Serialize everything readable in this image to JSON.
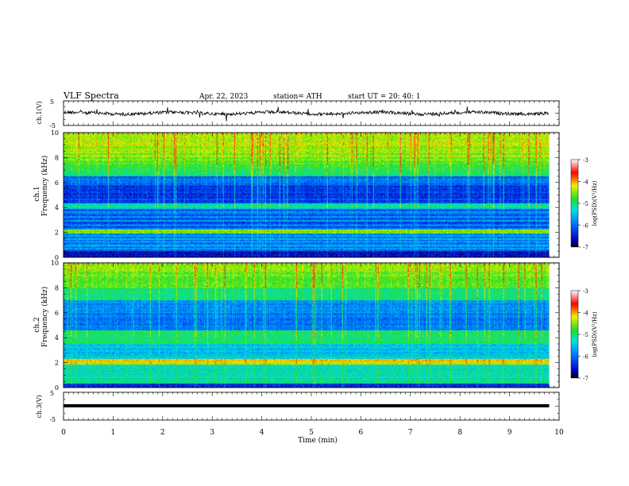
{
  "header": {
    "title": "VLF  Spectra",
    "date": "Apr. 22, 2023",
    "station": "station= ATH",
    "start": "start  UT  =    20: 40: 1"
  },
  "chart_data": [
    {
      "type": "line",
      "panel": "ch1-waveform",
      "ylabel": "ch.1(V)",
      "ylim": [
        -5,
        5
      ],
      "yticks": [
        "5",
        "-5"
      ],
      "xlim": [
        0,
        10
      ],
      "series_color": "#000000"
    },
    {
      "type": "heatmap",
      "panel": "ch1-spectrogram",
      "ylabel_channel": "ch.1",
      "ylabel": "Frequency  (kHz)",
      "ylim": [
        0,
        10
      ],
      "yticks": [
        "0",
        "2",
        "4",
        "6",
        "8",
        "10"
      ],
      "xlim": [
        0,
        10
      ],
      "data_end_min": 9.8,
      "colorbar": {
        "label": "log(PSD)(V²/Hz)",
        "range": [
          -7,
          -3
        ],
        "ticks": [
          "-3",
          "-4",
          "-5",
          "-6",
          "-7"
        ]
      }
    },
    {
      "type": "heatmap",
      "panel": "ch2-spectrogram",
      "ylabel_channel": "ch.2",
      "ylabel": "Frequency  (kHz)",
      "ylim": [
        0,
        10
      ],
      "yticks": [
        "0",
        "2",
        "4",
        "6",
        "8",
        "10"
      ],
      "xlim": [
        0,
        10
      ],
      "data_end_min": 9.8,
      "colorbar": {
        "label": "log(PSD)(V²/Hz)",
        "range": [
          -7,
          -3
        ],
        "ticks": [
          "-3",
          "-4",
          "-5",
          "-6",
          "-7"
        ]
      }
    },
    {
      "type": "line",
      "panel": "ch3-waveform",
      "ylabel": "ch.3(V)",
      "ylim": [
        -5,
        5
      ],
      "yticks": [
        "5",
        "-5"
      ],
      "xlim": [
        0,
        10
      ],
      "xlabel": "Time  (min)",
      "xticks": [
        "0",
        "1",
        "2",
        "3",
        "4",
        "5",
        "6",
        "7",
        "8",
        "9",
        "10"
      ],
      "series_color": "#000000"
    }
  ]
}
